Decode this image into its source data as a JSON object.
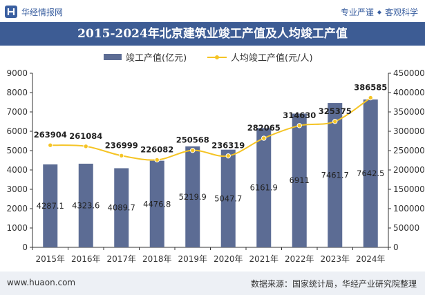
{
  "header": {
    "brand_name": "华经情报网",
    "slogan_left": "专业严谨",
    "slogan_right": "客观科学"
  },
  "title": "2015-2024年北京建筑业竣工产值及人均竣工产值",
  "footer": {
    "url": "www.huaon.com",
    "source": "数据来源：国家统计局，华经产业研究院整理"
  },
  "colors": {
    "bar": "#5c6c94",
    "line": "#f5c425",
    "title_bg": "#3d5c94",
    "brand_text": "#3a5fa0"
  },
  "icons": {
    "brand_logo": "huajing-logo-icon",
    "slogan_separator": "diamond-dot-icon"
  },
  "chart_data": {
    "type": "bar",
    "categories": [
      "2015年",
      "2016年",
      "2017年",
      "2018年",
      "2019年",
      "2020年",
      "2021年",
      "2022年",
      "2023年",
      "2024年"
    ],
    "series": [
      {
        "name": "竣工产值(亿元)",
        "type": "bar",
        "axis": "left",
        "values": [
          4287.1,
          4323.6,
          4089.7,
          4476.8,
          5219.9,
          5047.7,
          6161.9,
          6911,
          7461.7,
          7642.5
        ],
        "labels": [
          "4287.1",
          "4323.6",
          "4089.7",
          "4476.8",
          "5219.9",
          "5047.7",
          "6161.9",
          "6911",
          "7461.7",
          "7642.5"
        ]
      },
      {
        "name": "人均竣工产值(元/人)",
        "type": "line",
        "axis": "right",
        "values": [
          263904,
          261084,
          236999,
          226082,
          250568,
          236319,
          282065,
          314630,
          325375,
          386585
        ],
        "labels": [
          "263904",
          "261084",
          "236999",
          "226082",
          "250568",
          "236319",
          "282065",
          "314630",
          "325375",
          "386585"
        ]
      }
    ],
    "y_left": {
      "min": 0,
      "max": 9000,
      "ticks": [
        0,
        1000,
        2000,
        3000,
        4000,
        5000,
        6000,
        7000,
        8000,
        9000
      ],
      "tick_labels": [
        "0",
        "1000",
        "2000",
        "3000",
        "4000",
        "5000",
        "6000",
        "7000",
        "8000",
        "9000"
      ]
    },
    "y_right": {
      "min": 0,
      "max": 450000,
      "ticks": [
        0,
        50000,
        100000,
        150000,
        200000,
        250000,
        300000,
        350000,
        400000,
        450000
      ],
      "tick_labels": [
        "0",
        "50000",
        "100000",
        "150000",
        "200000",
        "250000",
        "300000",
        "350000",
        "400000",
        "450000"
      ]
    },
    "legend_position": "top-center",
    "grid": false
  }
}
